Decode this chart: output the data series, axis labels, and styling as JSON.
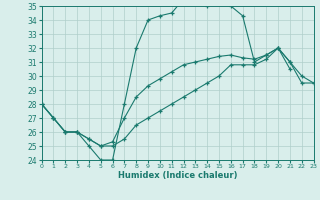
{
  "xlabel": "Humidex (Indice chaleur)",
  "xlim": [
    0,
    23
  ],
  "ylim": [
    24,
    35
  ],
  "yticks": [
    24,
    25,
    26,
    27,
    28,
    29,
    30,
    31,
    32,
    33,
    34,
    35
  ],
  "xticks": [
    0,
    1,
    2,
    3,
    4,
    5,
    6,
    7,
    8,
    9,
    10,
    11,
    12,
    13,
    14,
    15,
    16,
    17,
    18,
    19,
    20,
    21,
    22,
    23
  ],
  "line_color": "#1a7a6e",
  "bg_color": "#d9eeeb",
  "grid_color": "#b0cfcb",
  "max_x": [
    0,
    1,
    2,
    3,
    4,
    5,
    6,
    7,
    8,
    9,
    10,
    11,
    12,
    13,
    14,
    15,
    16,
    17,
    18,
    19,
    20,
    21
  ],
  "max_y": [
    28,
    27,
    26,
    26,
    25,
    24,
    24,
    28,
    32,
    34,
    34.3,
    34.5,
    35.5,
    35.2,
    35.0,
    35.5,
    35.0,
    34.3,
    31.0,
    31.5,
    32.0,
    30.5
  ],
  "mean_x": [
    0,
    1,
    2,
    3,
    4,
    5,
    6,
    7,
    8,
    9,
    10,
    11,
    12,
    13,
    14,
    15,
    16,
    17,
    18,
    19,
    20,
    21,
    22,
    23
  ],
  "mean_y": [
    28,
    27,
    26,
    26,
    25.5,
    25.0,
    25.3,
    27.0,
    28.5,
    29.3,
    29.8,
    30.3,
    30.8,
    31.0,
    31.2,
    31.4,
    31.5,
    31.3,
    31.2,
    31.5,
    32.0,
    31.0,
    30.0,
    29.5
  ],
  "min_x": [
    0,
    1,
    2,
    3,
    4,
    5,
    6,
    7,
    8,
    9,
    10,
    11,
    12,
    13,
    14,
    15,
    16,
    17,
    18,
    19,
    20,
    21,
    22,
    23
  ],
  "min_y": [
    28,
    27,
    26,
    26,
    25.5,
    25.0,
    25.0,
    25.5,
    26.5,
    27.0,
    27.5,
    28.0,
    28.5,
    29.0,
    29.5,
    30.0,
    30.8,
    30.8,
    30.8,
    31.2,
    32.0,
    31.0,
    29.5,
    29.5
  ]
}
